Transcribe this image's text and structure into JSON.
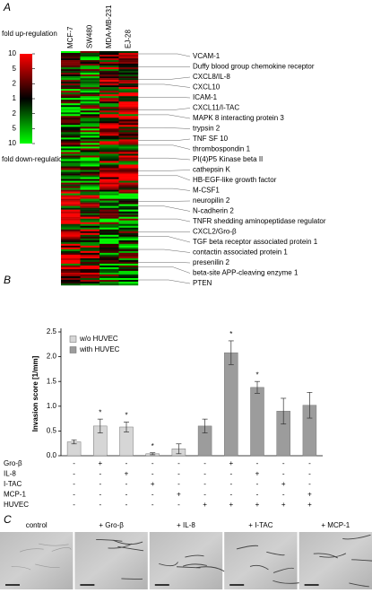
{
  "panel_labels": [
    "A",
    "B",
    "C"
  ],
  "heatmap": {
    "columns": [
      "MCF-7",
      "SW480",
      "MDA-MB-231",
      "EJ-28"
    ],
    "scale_top_label": "fold up-regulation",
    "scale_bottom_label": "fold down-regulation",
    "scale_ticks": [
      "10",
      "5",
      "2",
      "1",
      "2",
      "5",
      "10"
    ],
    "genes": [
      "VCAM-1",
      "Duffy blood group chemokine receptor",
      "CXCL8/IL-8",
      "CXCL10",
      "ICAM-1",
      "CXCL11/I-TAC",
      "MAPK 8 interacting protein 3",
      "trypsin 2",
      "TNF SF 10",
      "thrombospondin 1",
      "PI(4)P5 Kinase beta II",
      "cathepsin K",
      "HB-EGF-like growth factor",
      "M-CSF1",
      "neuropilin 2",
      "N-cadherin 2",
      "TNFR shedding aminopeptidase regulator",
      "CXCL2/Gro-β",
      "TGF beta receptor associated protein 1",
      "contactin associated protein 1",
      "presenilin 2",
      "beta-site APP-cleaving enzyme 1",
      "PTEN"
    ]
  },
  "chart_data": {
    "type": "bar",
    "y_label": "Invasion score [1/mm]",
    "categories": [
      null,
      null,
      null,
      null,
      null,
      null,
      null,
      null,
      null,
      null
    ],
    "series": [
      {
        "name": "w/o HUVEC",
        "color": "#d6d6d6",
        "values": [
          0.28,
          0.6,
          0.58,
          0.04,
          0.14,
          null,
          null,
          null,
          null,
          null
        ],
        "errors": [
          0.04,
          0.14,
          0.1,
          0.02,
          0.1,
          null,
          null,
          null,
          null,
          null
        ]
      },
      {
        "name": "with HUVEC",
        "color": "#9c9c9c",
        "values": [
          null,
          null,
          null,
          null,
          null,
          0.6,
          2.08,
          1.38,
          0.9,
          1.02
        ],
        "errors": [
          null,
          null,
          null,
          null,
          null,
          0.14,
          0.24,
          0.12,
          0.26,
          0.26
        ]
      }
    ],
    "significance": [
      null,
      "*",
      "*",
      "*",
      null,
      null,
      "*",
      "*",
      null,
      null
    ],
    "ylim": [
      0,
      2.5
    ],
    "yticks": [
      {
        "value": 0,
        "label": "0.0"
      },
      0.5,
      {
        "value": 1,
        "label": "1.0"
      },
      1.5,
      {
        "value": 2,
        "label": "2.0"
      },
      2.5
    ],
    "conditions": [
      {
        "name": "Gro-β",
        "signs": [
          "-",
          "+",
          "-",
          "-",
          "-",
          "-",
          "+",
          "-",
          "-",
          "-"
        ]
      },
      {
        "name": "IL-8",
        "signs": [
          "-",
          "-",
          "+",
          "-",
          "-",
          "-",
          "-",
          "+",
          "-",
          "-"
        ]
      },
      {
        "name": "I-TAC",
        "signs": [
          "-",
          "-",
          "-",
          "+",
          "-",
          "-",
          "-",
          "-",
          "+",
          "-"
        ]
      },
      {
        "name": "MCP-1",
        "signs": [
          "-",
          "-",
          "-",
          "-",
          "+",
          "-",
          "-",
          "-",
          "-",
          "+"
        ]
      },
      {
        "name": "HUVEC",
        "signs": [
          "-",
          "-",
          "-",
          "-",
          "-",
          "+",
          "+",
          "+",
          "+",
          "+"
        ]
      }
    ]
  },
  "micrographs": {
    "labels": [
      "control",
      "+ Gro-β",
      "+ IL-8",
      "+ I-TAC",
      "+ MCP-1"
    ]
  }
}
